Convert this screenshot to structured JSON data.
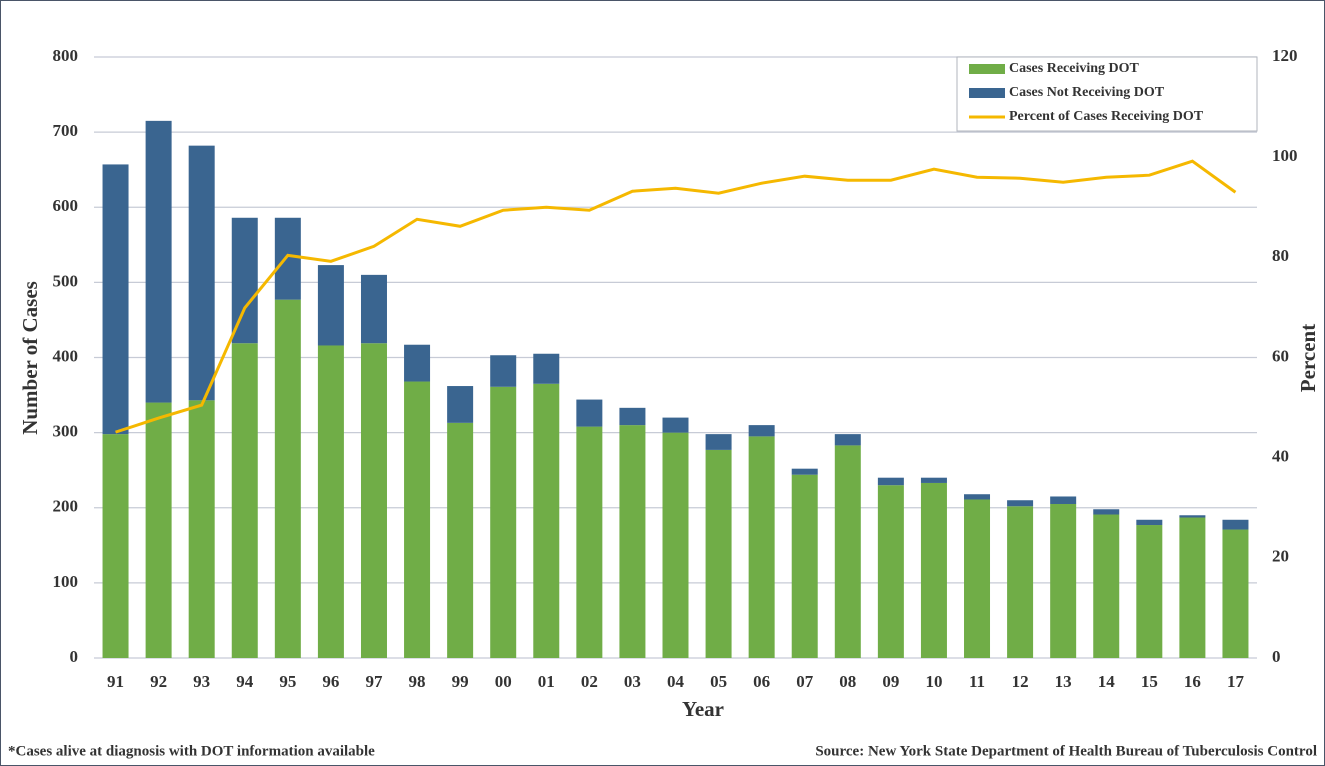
{
  "chart_data": {
    "type": "bar",
    "stacked": true,
    "categories": [
      "91",
      "92",
      "93",
      "94",
      "95",
      "96",
      "97",
      "98",
      "99",
      "00",
      "01",
      "02",
      "03",
      "04",
      "05",
      "06",
      "07",
      "08",
      "09",
      "10",
      "11",
      "12",
      "13",
      "14",
      "15",
      "16",
      "17"
    ],
    "series": [
      {
        "name": "Cases Receiving DOT",
        "color": "#70ad47",
        "values": [
          298,
          340,
          343,
          419,
          477,
          416,
          419,
          368,
          313,
          361,
          365,
          308,
          310,
          300,
          277,
          295,
          244,
          283,
          230,
          233,
          211,
          202,
          205,
          191,
          177,
          187,
          171
        ]
      },
      {
        "name": "Cases Not Receiving DOT",
        "color": "#3a6590",
        "values": [
          359,
          375,
          339,
          167,
          109,
          107,
          91,
          49,
          49,
          42,
          40,
          36,
          23,
          20,
          21,
          15,
          8,
          15,
          10,
          7,
          7,
          8,
          10,
          7,
          7,
          3,
          13
        ]
      },
      {
        "name": "Percent of Cases Receiving DOT",
        "color": "#f5b800",
        "type": "line",
        "axis": "y2",
        "values": [
          45.1,
          47.9,
          50.5,
          69.9,
          80.4,
          79.2,
          82.2,
          87.6,
          86.2,
          89.4,
          90.0,
          89.4,
          93.2,
          93.8,
          92.8,
          94.8,
          96.2,
          95.4,
          95.4,
          97.6,
          96.0,
          95.8,
          95.0,
          96.0,
          96.4,
          99.2,
          93.0
        ]
      }
    ],
    "ylim": [
      0,
      800
    ],
    "yticks": [
      0,
      100,
      200,
      300,
      400,
      500,
      600,
      700,
      800
    ],
    "y2lim": [
      0,
      120
    ],
    "y2ticks": [
      0,
      20,
      40,
      60,
      80,
      100,
      120
    ],
    "y_label": "Number of Cases",
    "y2_label": "Percent",
    "x_label": "Year",
    "grid": true,
    "legend": "top-right",
    "footnote": "*Cases alive at diagnosis with DOT information available",
    "source": "Source: New York State Department of Health Bureau of Tuberculosis Control"
  }
}
